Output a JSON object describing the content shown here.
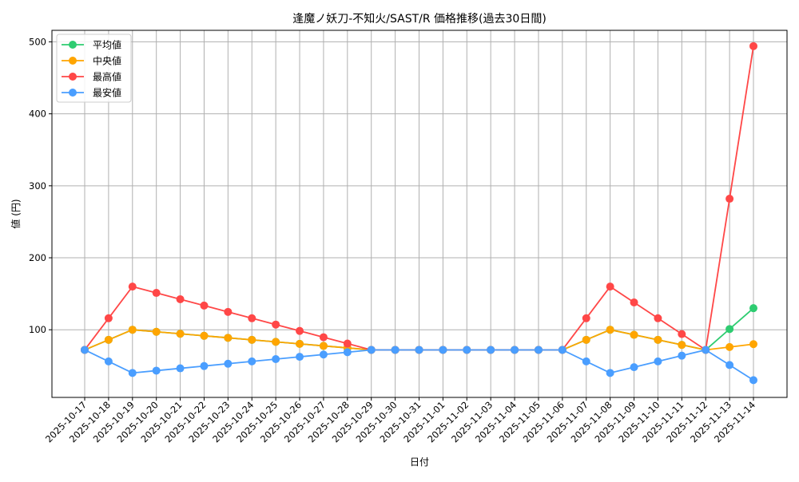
{
  "chart_data": {
    "type": "line",
    "title": "逢魔ノ妖刀-不知火/SAST/R 価格推移(過去30日間)",
    "xlabel": "日付",
    "ylabel": "値 (円)",
    "ylim": [
      6,
      516
    ],
    "yticks": [
      100,
      200,
      300,
      400,
      500
    ],
    "grid": true,
    "legend_position": "top-left",
    "categories": [
      "2025-10-17",
      "2025-10-18",
      "2025-10-19",
      "2025-10-20",
      "2025-10-21",
      "2025-10-22",
      "2025-10-23",
      "2025-10-24",
      "2025-10-25",
      "2025-10-26",
      "2025-10-27",
      "2025-10-28",
      "2025-10-29",
      "2025-10-30",
      "2025-10-31",
      "2025-11-01",
      "2025-11-02",
      "2025-11-03",
      "2025-11-04",
      "2025-11-05",
      "2025-11-06",
      "2025-11-07",
      "2025-11-08",
      "2025-11-09",
      "2025-11-10",
      "2025-11-11",
      "2025-11-12",
      "2025-11-13",
      "2025-11-14"
    ],
    "series": [
      {
        "name": "平均値",
        "color": "#2ecc71",
        "values": [
          72,
          86,
          100,
          97.2,
          94.4,
          91.6,
          88.8,
          86,
          83.2,
          80.4,
          77.6,
          74.8,
          72,
          72,
          72,
          72,
          72,
          72,
          72,
          72,
          72,
          86,
          100,
          93,
          86,
          79,
          72,
          101,
          130
        ]
      },
      {
        "name": "中央値",
        "color": "#ffa500",
        "values": [
          72,
          86,
          100,
          97.2,
          94.4,
          91.6,
          88.8,
          86,
          83.2,
          80.4,
          77.6,
          74.8,
          72,
          72,
          72,
          72,
          72,
          72,
          72,
          72,
          72,
          86,
          100,
          93,
          86,
          79,
          72,
          76,
          80
        ]
      },
      {
        "name": "最高値",
        "color": "#ff4747",
        "values": [
          72,
          116,
          160,
          151.2,
          142.4,
          133.6,
          124.8,
          116,
          107.2,
          98.4,
          89.6,
          80.8,
          72,
          72,
          72,
          72,
          72,
          72,
          72,
          72,
          72,
          116,
          160,
          138,
          116,
          94,
          72,
          282,
          494
        ]
      },
      {
        "name": "最安値",
        "color": "#4a9eff",
        "values": [
          72,
          56,
          40,
          43.2,
          46.4,
          49.6,
          52.8,
          56,
          59.2,
          62.4,
          65.6,
          68.8,
          72,
          72,
          72,
          72,
          72,
          72,
          72,
          72,
          72,
          56,
          40,
          48,
          56,
          64,
          72,
          51,
          30
        ]
      }
    ]
  }
}
